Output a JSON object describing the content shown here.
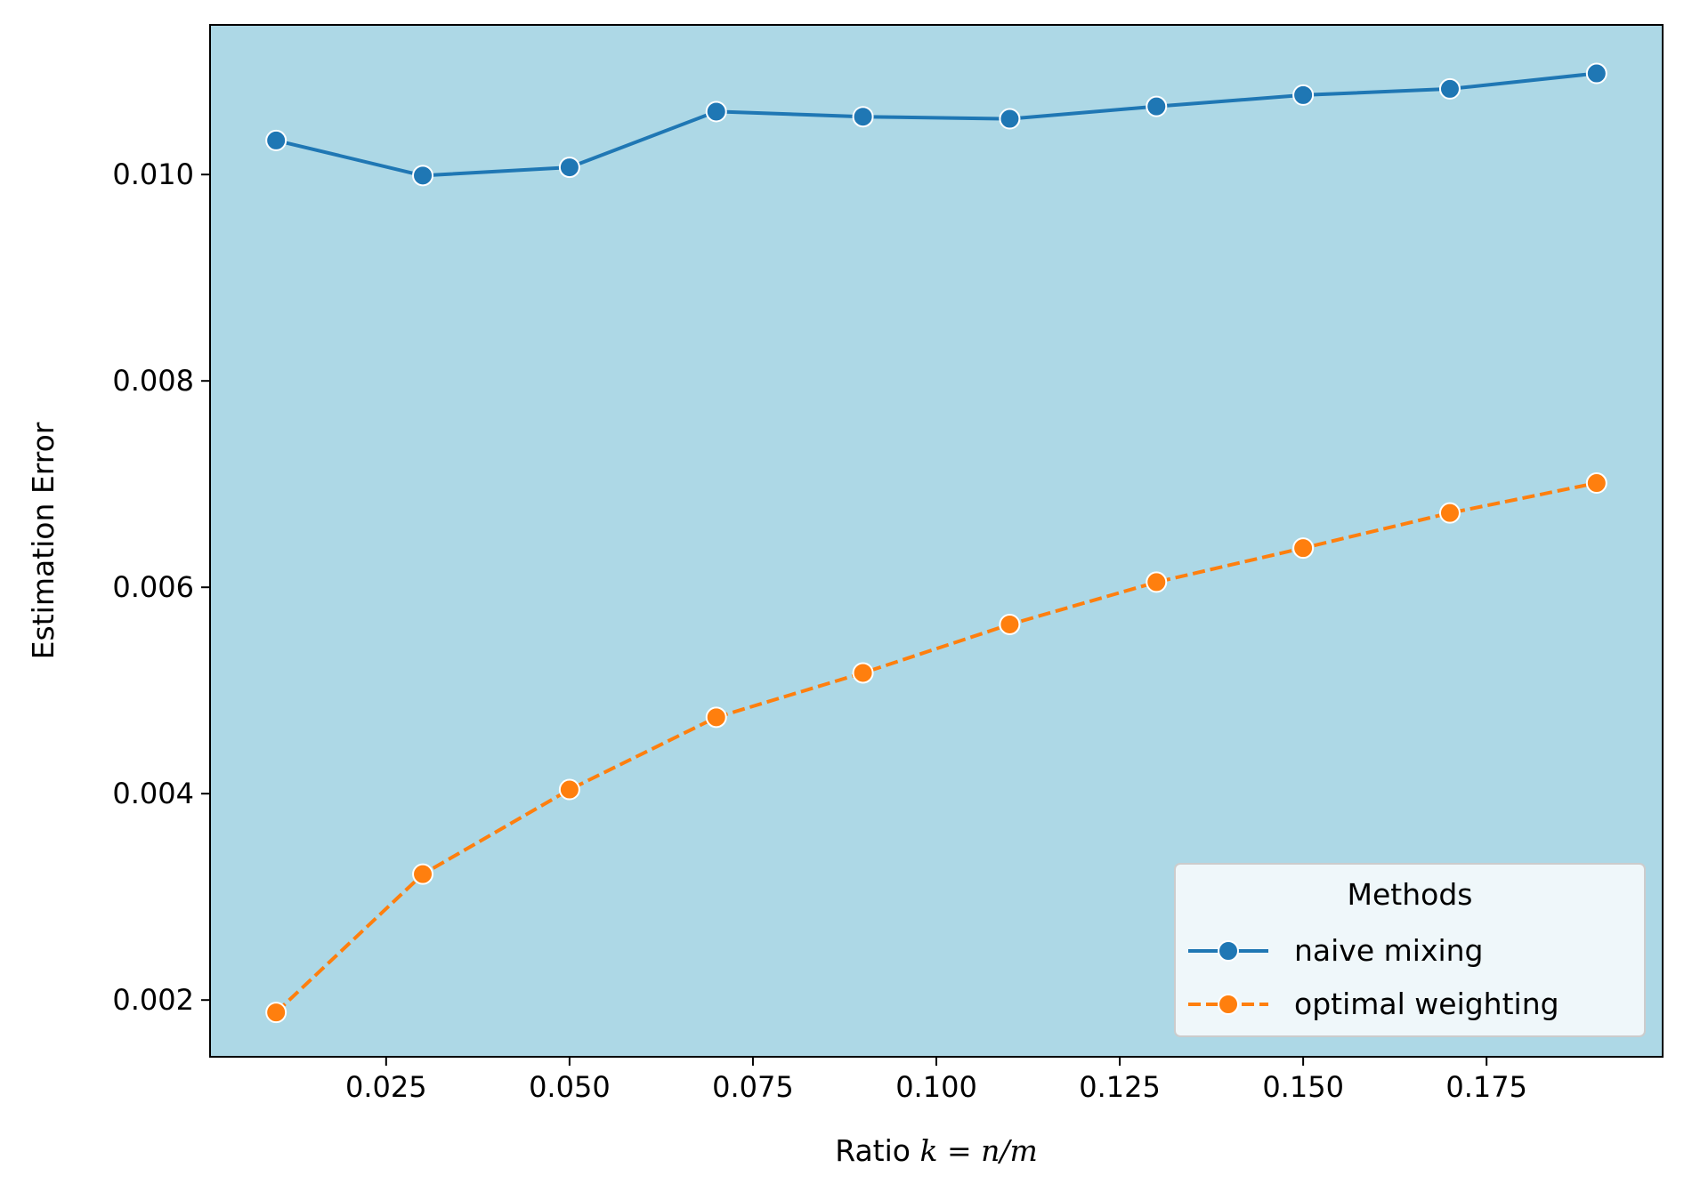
{
  "chart_data": {
    "type": "line",
    "xlabel_plain": "Ratio ",
    "xlabel_math": "k = n/m",
    "ylabel": "Estimation Error",
    "x": [
      0.01,
      0.03,
      0.05,
      0.07,
      0.09,
      0.11,
      0.13,
      0.15,
      0.17,
      0.19
    ],
    "xlim": [
      0.001,
      0.199
    ],
    "ylim": [
      0.00145,
      0.01145
    ],
    "xticks": [
      0.025,
      0.05,
      0.075,
      0.1,
      0.125,
      0.15,
      0.175
    ],
    "xtick_labels": [
      "0.025",
      "0.050",
      "0.075",
      "0.100",
      "0.125",
      "0.150",
      "0.175"
    ],
    "yticks": [
      0.002,
      0.004,
      0.006,
      0.008,
      0.01
    ],
    "ytick_labels": [
      "0.002",
      "0.004",
      "0.006",
      "0.008",
      "0.010"
    ],
    "background_color": "#add8e6",
    "grid": false,
    "legend": {
      "title": "Methods",
      "placement": "lower right"
    },
    "series": [
      {
        "name": "naive mixing",
        "color": "#1f77b4",
        "dash": "solid",
        "marker": "circle",
        "values": [
          0.01033,
          0.00999,
          0.01007,
          0.01061,
          0.01056,
          0.01054,
          0.01066,
          0.01077,
          0.01083,
          0.01098
        ]
      },
      {
        "name": "optimal weighting",
        "color": "#ff7f0e",
        "dash": "dashed",
        "marker": "circle",
        "values": [
          0.00188,
          0.00322,
          0.00404,
          0.00474,
          0.00517,
          0.00564,
          0.00605,
          0.00638,
          0.00672,
          0.00701
        ]
      }
    ]
  }
}
